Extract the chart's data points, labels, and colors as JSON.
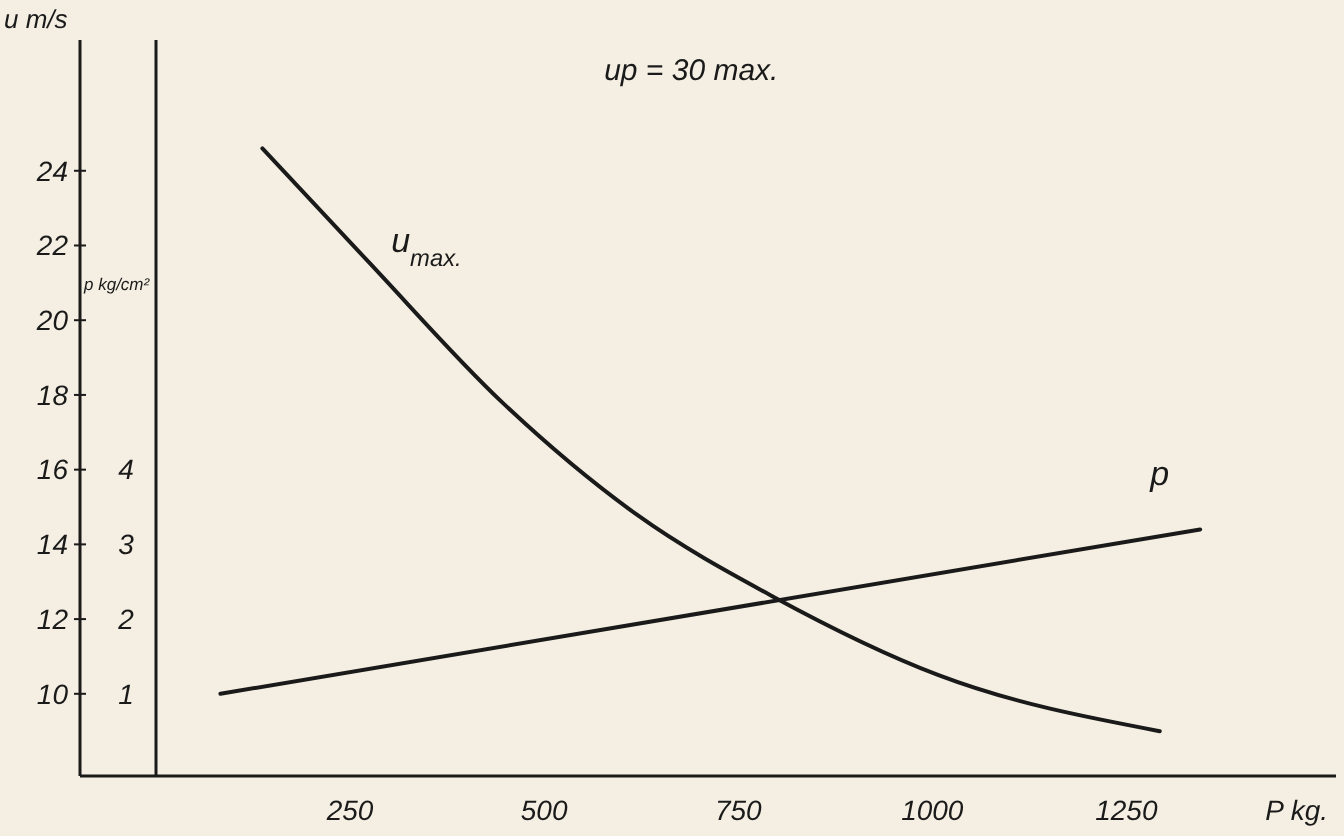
{
  "chart_data": {
    "type": "line",
    "title": "up = 30 max.",
    "xlabel": "P kg.",
    "ylabel": "u m/s",
    "y2label": "p kg/cm²",
    "xlim": [
      0,
      1520
    ],
    "xticks": [
      250,
      500,
      750,
      1000,
      1250
    ],
    "ylim": [
      7.8,
      27.5
    ],
    "yticks": [
      10,
      12,
      14,
      16,
      18,
      20,
      22,
      24
    ],
    "y2lim": [
      -0.1,
      9.75
    ],
    "y2ticks": [
      1,
      2,
      3,
      4
    ],
    "grid": false,
    "marker": "none",
    "line_style": "solid",
    "series": [
      {
        "name": "u$_{max.}$",
        "color": "#1a1a1a",
        "x": [
          137,
          272,
          446,
          619,
          795,
          1008,
          1293
        ],
        "values": [
          24.6,
          21.6,
          17.8,
          14.8,
          12.6,
          10.5,
          9.0
        ]
      },
      {
        "name": "p",
        "color": "#1a1a1a",
        "axis": "y2",
        "x": [
          83,
          1345
        ],
        "values": [
          1.0,
          3.2
        ]
      }
    ]
  }
}
